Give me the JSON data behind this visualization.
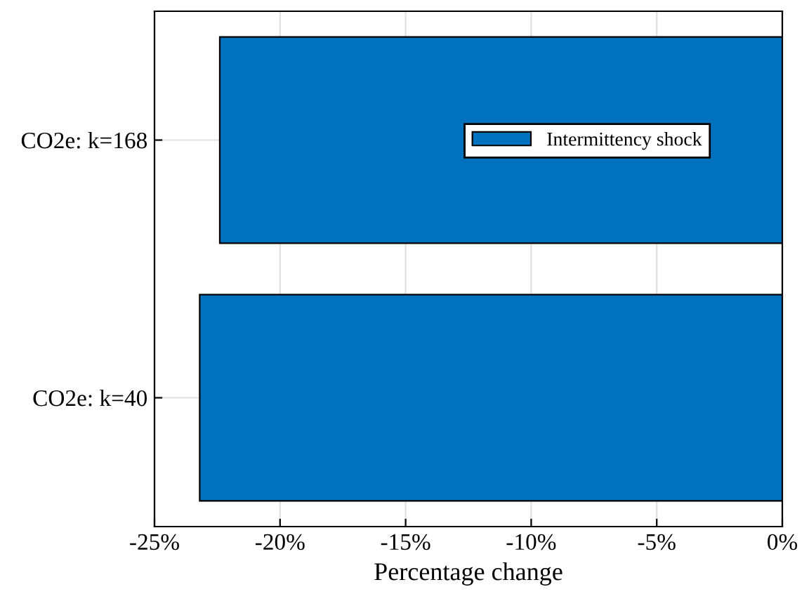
{
  "chart_data": {
    "type": "bar",
    "orientation": "horizontal",
    "xlabel": "Percentage change",
    "categories": [
      "CO2e: k=168",
      "CO2e: k=40"
    ],
    "series": [
      {
        "name": "Intermittency shock",
        "color": "#0072bd",
        "values": [
          -22.4,
          -23.2
        ]
      }
    ],
    "xlim": [
      -25,
      0
    ],
    "xticks": [
      {
        "value": -25,
        "label": "-25%"
      },
      {
        "value": -20,
        "label": "-20%"
      },
      {
        "value": -15,
        "label": "-15%"
      },
      {
        "value": -10,
        "label": "-10%"
      },
      {
        "value": -5,
        "label": "-5%"
      },
      {
        "value": 0,
        "label": "0%"
      }
    ],
    "grid": true,
    "legend": "top right"
  }
}
